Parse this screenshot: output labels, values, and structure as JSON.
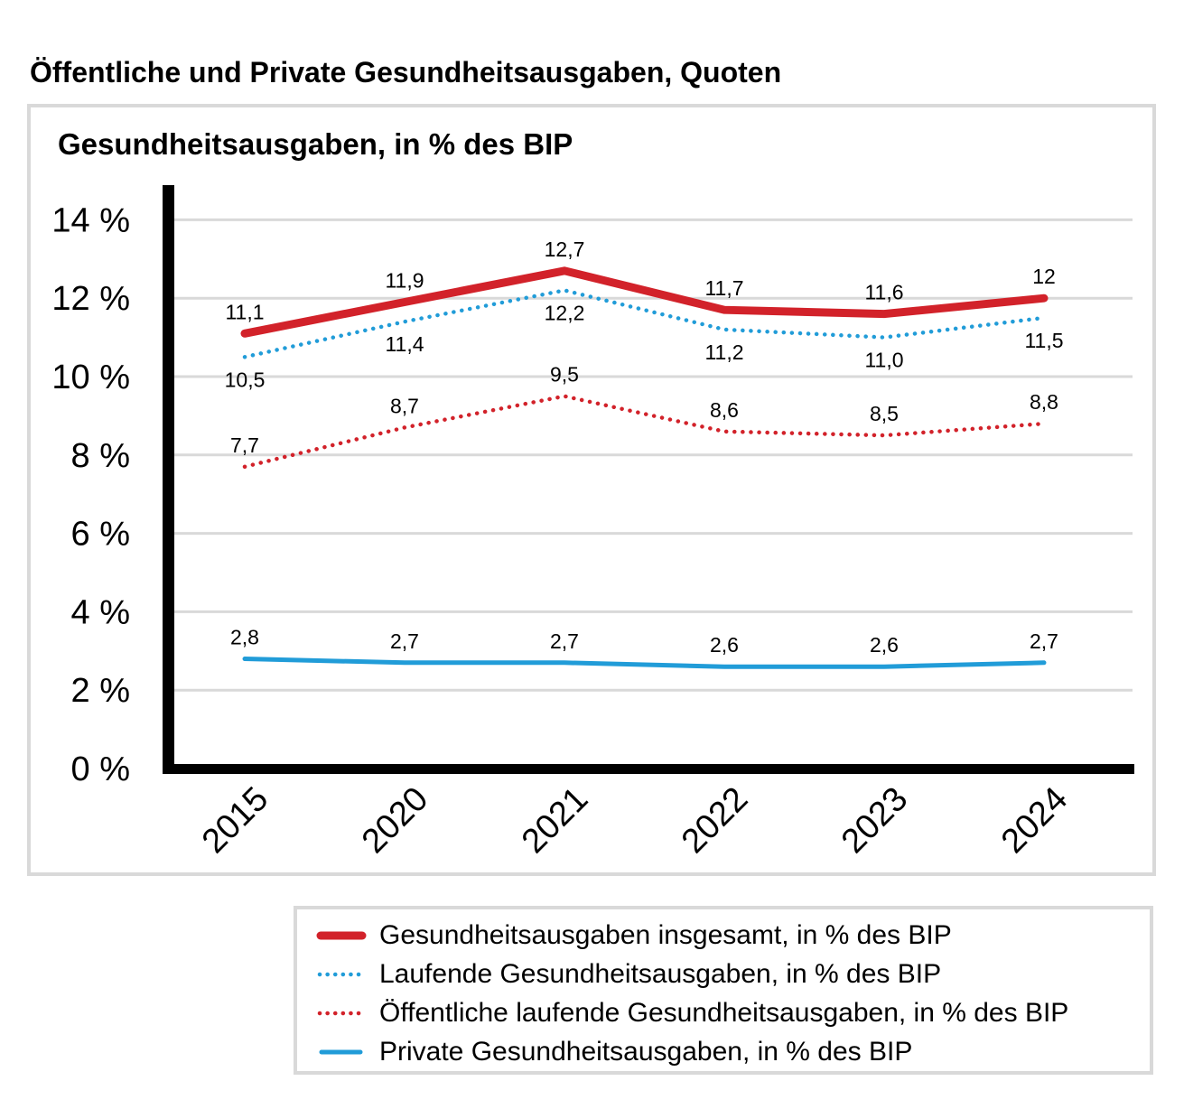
{
  "page": {
    "title": "Öffentliche und Private Gesundheitsausgaben, Quoten"
  },
  "colors": {
    "red": "#d2222a",
    "blue": "#219cd8",
    "grid": "#d9d9d9",
    "axis": "#000000",
    "panel_border": "#d9d9d9",
    "background": "#ffffff"
  },
  "chart_data": {
    "type": "line",
    "title": "Gesundheitsausgaben, in % des BIP",
    "categories": [
      "2015",
      "2020",
      "2021",
      "2022",
      "2023",
      "2024"
    ],
    "y_axis": {
      "ticks": [
        "0 %",
        "2 %",
        "4 %",
        "6 %",
        "8 %",
        "10 %",
        "12 %",
        "14 %"
      ],
      "tick_values": [
        0,
        2,
        4,
        6,
        8,
        10,
        12,
        14
      ],
      "ylim": [
        0,
        14.9
      ],
      "grid": true
    },
    "legend_position": "bottom",
    "series": [
      {
        "name": "Gesundheitsausgaben insgesamt, in % des BIP",
        "values": [
          11.1,
          11.9,
          12.7,
          11.7,
          11.6,
          12
        ],
        "labels": [
          "11,1",
          "11,9",
          "12,7",
          "11,7",
          "11,6",
          "12"
        ],
        "color": "#d2222a",
        "style": "solid",
        "width": 9,
        "label_position": "above"
      },
      {
        "name": "Laufende Gesundheitsausgaben, in % des BIP",
        "values": [
          10.5,
          11.4,
          12.2,
          11.2,
          11.0,
          11.5
        ],
        "labels": [
          "10,5",
          "11,4",
          "12,2",
          "11,2",
          "11,0",
          "11,5"
        ],
        "color": "#219cd8",
        "style": "dotted",
        "width": 4.5,
        "label_position": "below"
      },
      {
        "name": "Öffentliche laufende Gesundheitsausgaben, in % des BIP",
        "values": [
          7.7,
          8.7,
          9.5,
          8.6,
          8.5,
          8.8
        ],
        "labels": [
          "7,7",
          "8,7",
          "9,5",
          "8,6",
          "8,5",
          "8,8"
        ],
        "color": "#d2222a",
        "style": "dotted",
        "width": 4.5,
        "label_position": "above"
      },
      {
        "name": "Private Gesundheitsausgaben, in % des BIP",
        "values": [
          2.8,
          2.7,
          2.7,
          2.6,
          2.6,
          2.7
        ],
        "labels": [
          "2,8",
          "2,7",
          "2,7",
          "2,6",
          "2,6",
          "2,7"
        ],
        "color": "#219cd8",
        "style": "solid",
        "width": 5,
        "label_position": "above"
      }
    ]
  }
}
